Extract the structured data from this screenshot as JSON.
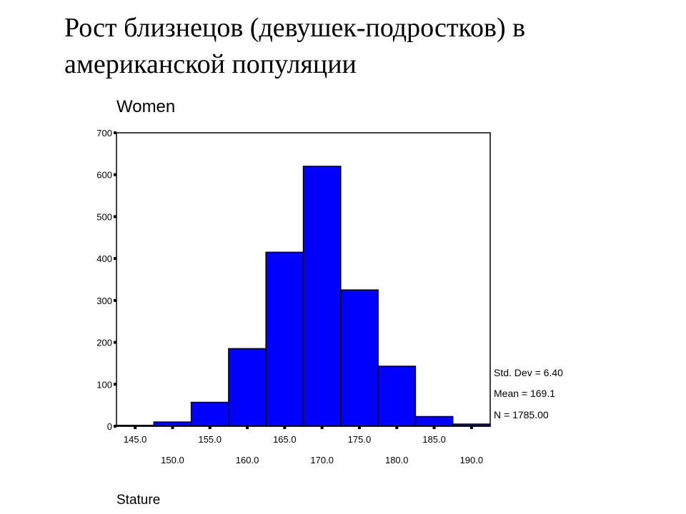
{
  "slide": {
    "title_line1": "Рост близнецов (девушек-подростков) в",
    "title_line2": "американской популяции"
  },
  "chart_data": {
    "type": "bar",
    "title": "Women",
    "xlabel": "Stature",
    "ylabel": "",
    "bin_width": 5,
    "bins": [
      {
        "center": 145.0,
        "count": 2
      },
      {
        "center": 150.0,
        "count": 10
      },
      {
        "center": 155.0,
        "count": 57
      },
      {
        "center": 160.0,
        "count": 185
      },
      {
        "center": 165.0,
        "count": 415
      },
      {
        "center": 170.0,
        "count": 620
      },
      {
        "center": 175.0,
        "count": 325
      },
      {
        "center": 180.0,
        "count": 143
      },
      {
        "center": 185.0,
        "count": 23
      },
      {
        "center": 190.0,
        "count": 5
      }
    ],
    "xlim": [
      142.5,
      192.5
    ],
    "ylim": [
      0,
      700
    ],
    "yticks": [
      "0",
      "100",
      "200",
      "300",
      "400",
      "500",
      "600",
      "700"
    ],
    "xticks_row1": [
      "145.0",
      "155.0",
      "165.0",
      "175.0",
      "185.0"
    ],
    "xticks_row2": [
      "150.0",
      "160.0",
      "170.0",
      "180.0",
      "190.0"
    ],
    "bar_color": "#0000FF",
    "bar_edge_color": "#000000",
    "grid": false,
    "stats": {
      "std_dev": "Std. Dev = 6.40",
      "mean": "Mean = 169.1",
      "n": "N = 1785.00"
    }
  }
}
